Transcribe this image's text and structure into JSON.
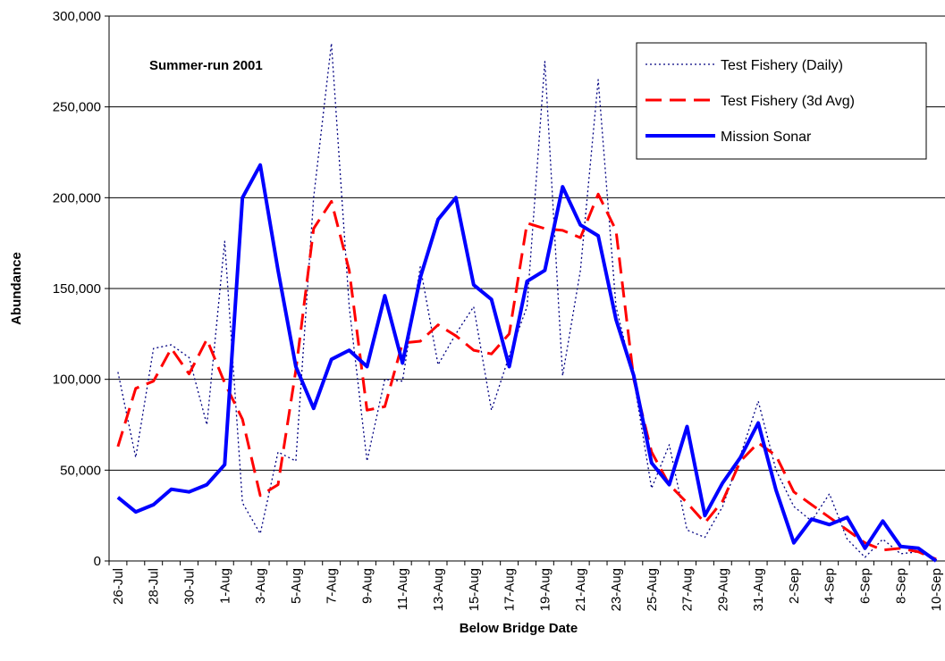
{
  "chart_data": {
    "type": "line",
    "annotation": "Summer-run 2001",
    "x_label": "Below Bridge Date",
    "y_label": "Abundance",
    "categories": [
      "26-Jul",
      null,
      "28-Jul",
      null,
      "30-Jul",
      null,
      "1-Aug",
      null,
      "3-Aug",
      null,
      "5-Aug",
      null,
      "7-Aug",
      null,
      "9-Aug",
      null,
      "11-Aug",
      null,
      "13-Aug",
      null,
      "15-Aug",
      null,
      "17-Aug",
      null,
      "19-Aug",
      null,
      "21-Aug",
      null,
      "23-Aug",
      null,
      "25-Aug",
      null,
      "27-Aug",
      null,
      "29-Aug",
      null,
      "31-Aug",
      null,
      "2-Sep",
      null,
      "4-Sep",
      null,
      "6-Sep",
      null,
      "8-Sep",
      null,
      "10-Sep"
    ],
    "series": [
      {
        "name": "Test Fishery (Daily)",
        "color": "#000080",
        "style": "dotted",
        "values": [
          104000,
          57000,
          117000,
          119000,
          112000,
          75000,
          176000,
          32000,
          15000,
          60000,
          55000,
          200000,
          285000,
          140000,
          55000,
          100000,
          99000,
          162000,
          108000,
          125000,
          140000,
          83000,
          113000,
          140000,
          275000,
          102000,
          160000,
          265000,
          140000,
          100000,
          40000,
          64000,
          17000,
          13000,
          30000,
          58000,
          88000,
          50000,
          30000,
          22000,
          37000,
          12000,
          2000,
          12000,
          4000,
          5000,
          1000
        ]
      },
      {
        "name": "Test Fishery (3d Avg)",
        "color": "#ff0000",
        "style": "dashed",
        "values": [
          63000,
          95000,
          99000,
          117000,
          103000,
          122000,
          98000,
          78000,
          36000,
          42000,
          105000,
          183000,
          198000,
          160000,
          83000,
          85000,
          120000,
          121000,
          130000,
          124000,
          116000,
          114000,
          125000,
          186000,
          183000,
          182000,
          178000,
          202000,
          182000,
          100000,
          60000,
          42000,
          32000,
          21000,
          33000,
          55000,
          65000,
          58000,
          38000,
          31000,
          24000,
          17000,
          10000,
          6000,
          7000,
          5000,
          1000
        ]
      },
      {
        "name": "Mission Sonar",
        "color": "#0000ff",
        "style": "solid",
        "values": [
          35000,
          27000,
          31000,
          39500,
          38000,
          42000,
          53000,
          200000,
          218000,
          160000,
          107000,
          84000,
          111000,
          116000,
          107000,
          146000,
          109000,
          156000,
          188000,
          200000,
          152000,
          144000,
          107000,
          154000,
          160000,
          206000,
          185000,
          179000,
          133000,
          102000,
          54000,
          42000,
          74000,
          25000,
          43000,
          57000,
          76000,
          39000,
          10000,
          23000,
          20000,
          24000,
          7000,
          22000,
          8000,
          7000,
          0
        ]
      }
    ],
    "ylim": [
      0,
      300000
    ],
    "yticks": [
      0,
      {
        "value": 50000,
        "label": "50,000"
      },
      {
        "value": 100000,
        "label": "100,000"
      },
      {
        "value": 150000,
        "label": "150,000"
      },
      {
        "value": 200000,
        "label": "200,000"
      },
      {
        "value": 250000,
        "label": "250,000"
      },
      {
        "value": 300000,
        "label": "300,000"
      }
    ],
    "grid": true
  }
}
